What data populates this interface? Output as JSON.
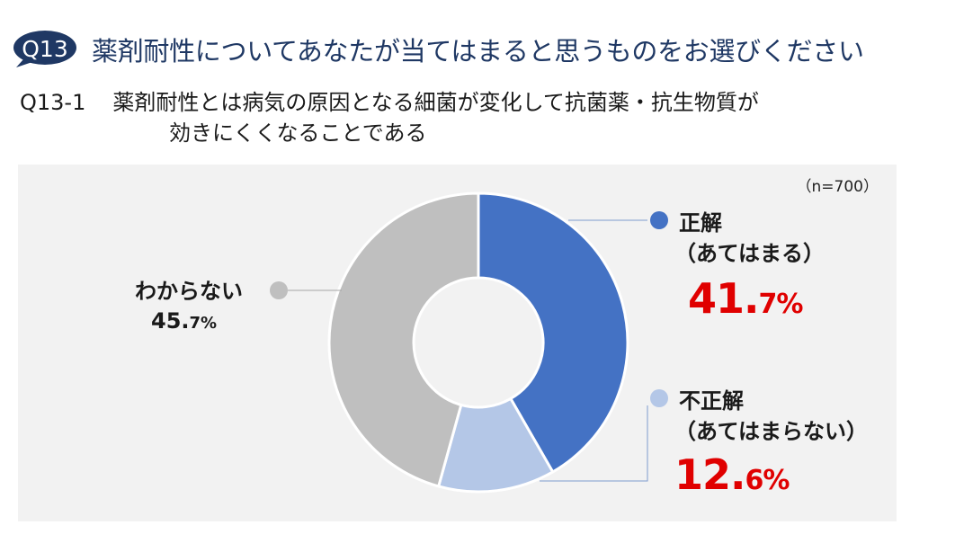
{
  "question_badge": "Q13",
  "main_title": "薬剤耐性についてあなたが当てはまると思うものをお選びください",
  "sub_question": {
    "number": "Q13-1",
    "line1": "薬剤耐性とは病気の原因となる細菌が変化して抗菌薬・抗生物質が",
    "line2": "効きにくくなることである"
  },
  "sample_note": "（n=700）",
  "colors": {
    "badge": "#1f3864",
    "correct": "#4472c4",
    "incorrect": "#b4c7e7",
    "unknown": "#bfbfbf",
    "highlight": "#e00000"
  },
  "chart_data": {
    "type": "pie",
    "donut": true,
    "series": [
      {
        "name": "正解（あてはまる）",
        "value": 41.7,
        "color": "#4472c4"
      },
      {
        "name": "不正解（あてはまらない）",
        "value": 12.6,
        "color": "#b4c7e7"
      },
      {
        "name": "わからない",
        "value": 45.7,
        "color": "#bfbfbf"
      }
    ]
  },
  "labels": {
    "correct": {
      "line1": "正解",
      "line2": "（あてはまる）",
      "pct_int": "41.",
      "pct_dec": "7%"
    },
    "incorrect": {
      "line1": "不正解",
      "line2": "（あてはまらない）",
      "pct_int": "12.",
      "pct_dec": "6%"
    },
    "unknown": {
      "line1": "わからない",
      "pct_int": "45.",
      "pct_dec": "7%"
    }
  }
}
